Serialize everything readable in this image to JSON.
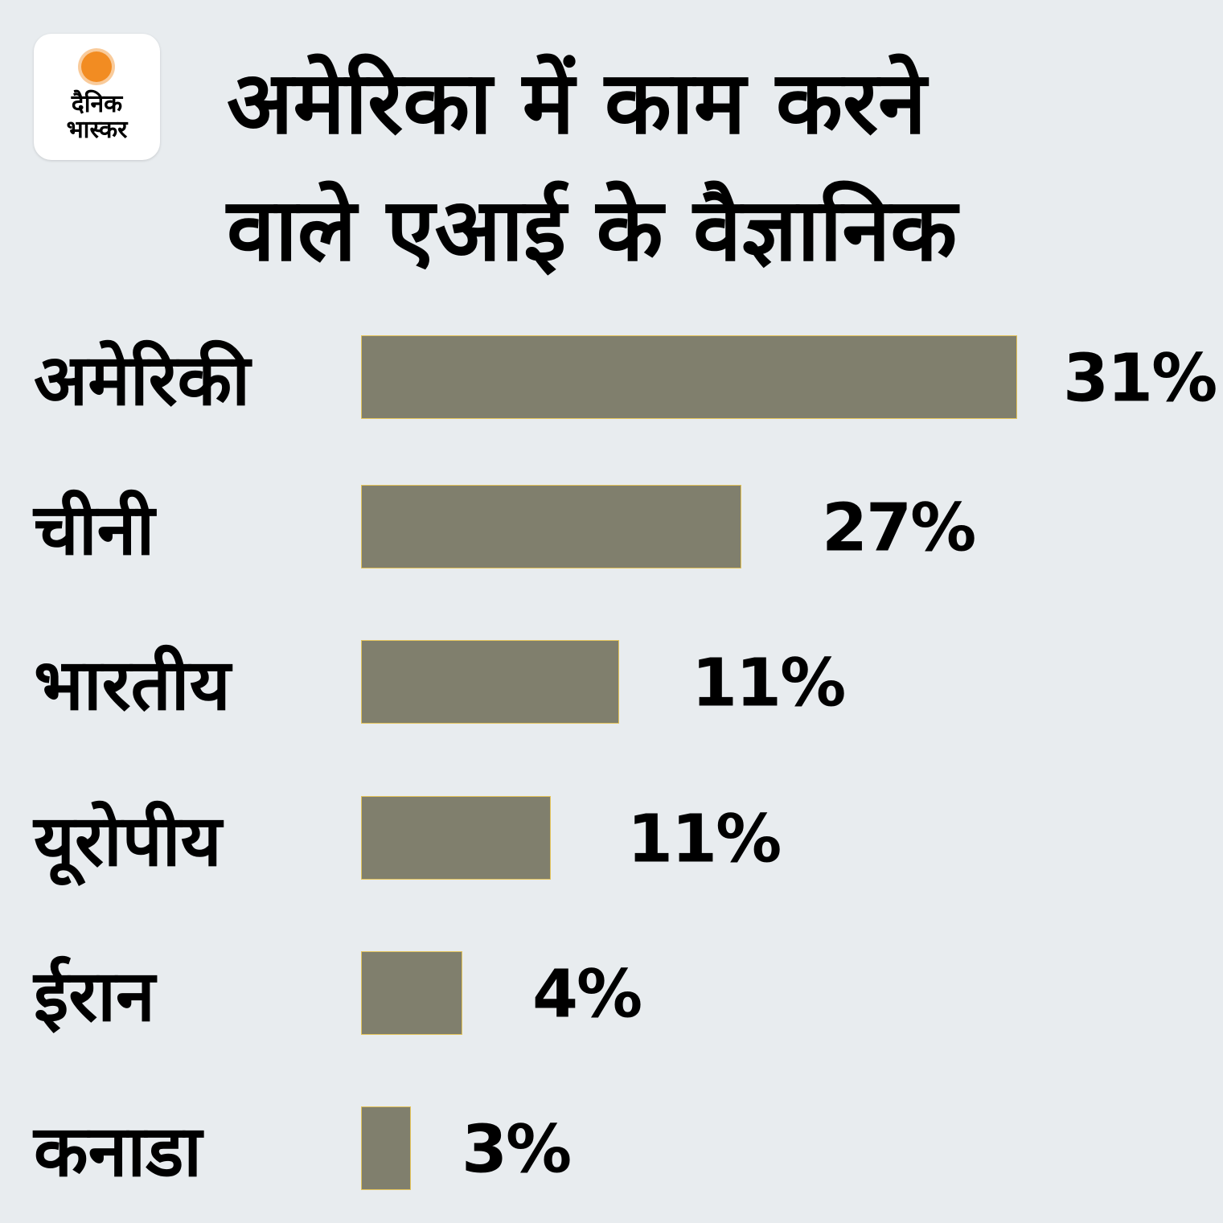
{
  "logo": {
    "line1": "दैनिक",
    "line2": "भास्कर",
    "sun_color": "#f28c22"
  },
  "chart_data": {
    "type": "bar",
    "orientation": "horizontal",
    "title_lines": [
      "अमेरिका में काम करने",
      "वाले एआई के वैज्ञानिक"
    ],
    "categories": [
      "अमेरिकी",
      "चीनी",
      "भारतीय",
      "यूरोपीय",
      "ईरान",
      "कनाडा"
    ],
    "values": [
      31,
      27,
      11,
      11,
      4,
      3
    ],
    "value_labels": [
      "31%",
      "27%",
      "11%",
      "11%",
      "4%",
      "3%"
    ],
    "unit": "%",
    "bar_color": "#807f6d",
    "bar_border_color": "#e3c35a",
    "grid": false,
    "legend": "none"
  }
}
